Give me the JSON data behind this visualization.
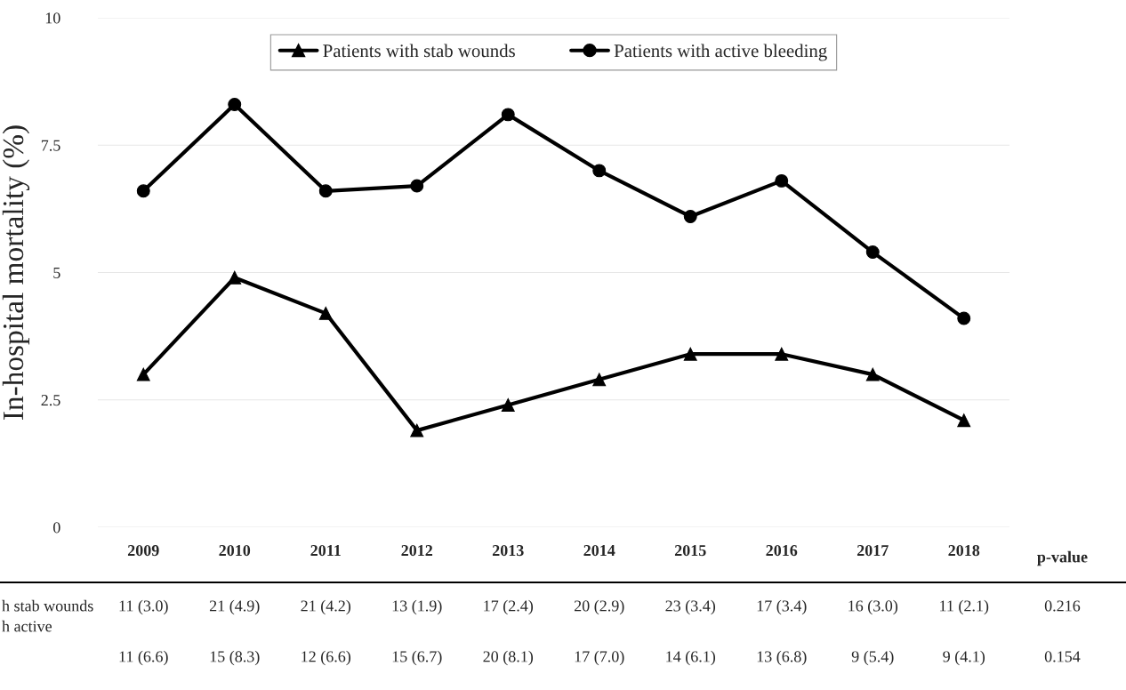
{
  "chart_data": {
    "type": "line",
    "ylabel": "In-hospital mortality (%)",
    "categories": [
      "2009",
      "2010",
      "2011",
      "2012",
      "2013",
      "2014",
      "2015",
      "2016",
      "2017",
      "2018"
    ],
    "ylim": [
      0,
      10
    ],
    "yticks": [
      0,
      2.5,
      5,
      7.5,
      10
    ],
    "grid": "y",
    "legend": "top",
    "line_style": "solid",
    "series": [
      {
        "name": "Patients with stab wounds",
        "color": "#000000",
        "marker": "triangle",
        "values": [
          3.0,
          4.9,
          4.2,
          1.9,
          2.4,
          2.9,
          3.4,
          3.4,
          3.0,
          2.1
        ],
        "value_labels": [
          "11 (3.0)",
          "21 (4.9)",
          "21 (4.2)",
          "13 (1.9)",
          "17 (2.4)",
          "20 (2.9)",
          "23 (3.4)",
          "17 (3.4)",
          "16 (3.0)",
          "11 (2.1)"
        ]
      },
      {
        "name": "Patients with active bleeding",
        "color": "#000000",
        "marker": "circle",
        "values": [
          6.6,
          8.3,
          6.6,
          6.7,
          8.1,
          7.0,
          6.1,
          6.8,
          5.4,
          4.1
        ],
        "value_labels": [
          "11 (6.6)",
          "15 (8.3)",
          "12 (6.6)",
          "15 (6.7)",
          "20 (8.1)",
          "17 (7.0)",
          "14 (6.1)",
          "13 (6.8)",
          "9 (5.4)",
          "9 (4.1)"
        ]
      }
    ],
    "annotations": [
      "h stab wounds",
      "h active",
      "p-value",
      "0.216",
      "0.154"
    ]
  }
}
